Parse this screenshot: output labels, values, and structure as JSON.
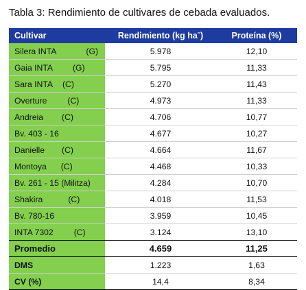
{
  "caption": "Tabla 3: Rendimiento de cultivares de cebada evaluados.",
  "table": {
    "headers": {
      "col1": "Cultivar",
      "col2": "Rendimiento (kg haˉ)",
      "col3": "Proteína (%)"
    },
    "rows": [
      {
        "name": "Silera INTA",
        "suffix": "(G)",
        "yield": "5.978",
        "protein": "12,10"
      },
      {
        "name": "Gaia INTA",
        "suffix": "(G)",
        "yield": "5.795",
        "protein": "11,33"
      },
      {
        "name": "Sara INTA",
        "suffix": "(C)",
        "yield": "5.270",
        "protein": "11,43"
      },
      {
        "name": "Overture",
        "suffix": "(C)",
        "yield": "4.973",
        "protein": "11,33"
      },
      {
        "name": "Andreia",
        "suffix": "(C)",
        "yield": "4.706",
        "protein": "10,77"
      },
      {
        "name": "Bv. 403 - 16",
        "suffix": "",
        "yield": "4.677",
        "protein": "10,27"
      },
      {
        "name": "Danielle",
        "suffix": "(C)",
        "yield": "4.664",
        "protein": "11,67"
      },
      {
        "name": "Montoya",
        "suffix": "(C)",
        "yield": "4.468",
        "protein": "10,33"
      },
      {
        "name": "Bv. 261 - 15 (Militza)",
        "suffix": "",
        "yield": "4.284",
        "protein": "10,70"
      },
      {
        "name": "Shakira",
        "suffix": "(C)",
        "yield": "4.018",
        "protein": "11,53"
      },
      {
        "name": "Bv. 780-16",
        "suffix": "",
        "yield": "3.959",
        "protein": "10,45"
      },
      {
        "name": "INTA 7302",
        "suffix": "(C)",
        "yield": "3.124",
        "protein": "13,10"
      }
    ],
    "average": {
      "name": "Promedio",
      "yield": "4.659",
      "protein": "11,25"
    },
    "stats": [
      {
        "name": "DMS",
        "yield": "1.223",
        "protein": "1,63"
      },
      {
        "name": "CV (%)",
        "yield": "14,4",
        "protein": "8,34"
      }
    ]
  }
}
